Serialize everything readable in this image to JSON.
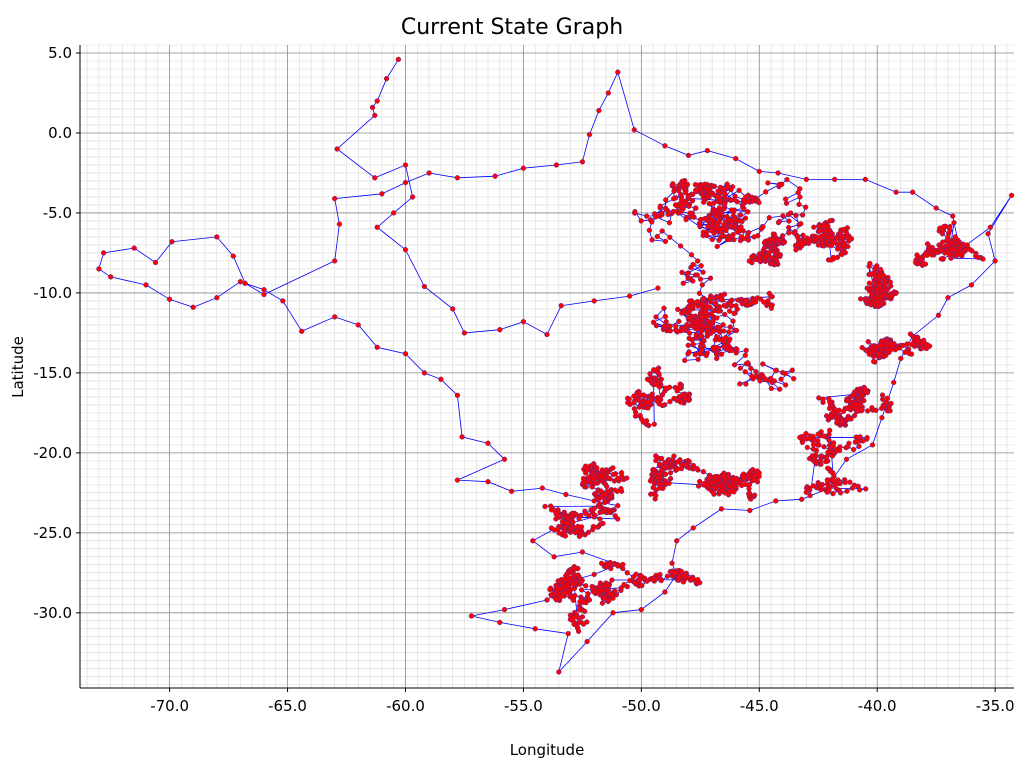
{
  "chart_data": {
    "type": "scatter",
    "title": "Current State Graph",
    "xlabel": "Longitude",
    "ylabel": "Latitude",
    "xlim": [
      -73.8,
      -34.2
    ],
    "ylim": [
      -34.7,
      5.5
    ],
    "x_ticks": [
      -70,
      -65,
      -60,
      -55,
      -50,
      -45,
      -40,
      -35
    ],
    "x_tick_labels": [
      "-70.0",
      "-65.0",
      "-60.0",
      "-55.0",
      "-50.0",
      "-45.0",
      "-40.0",
      "-35.0"
    ],
    "y_ticks": [
      5,
      0,
      -5,
      -10,
      -15,
      -20,
      -25,
      -30
    ],
    "y_tick_labels": [
      "5.0",
      "0.0",
      "-5.0",
      "-10.0",
      "-15.0",
      "-20.0",
      "-25.0",
      "-30.0"
    ],
    "grid": true,
    "colors": {
      "edges": "#0000ff",
      "nodes": "#ff0000",
      "node_edge": "#5b2a8c",
      "grid_major": "#8a8a8a",
      "grid_minor": "#d9d9d9"
    },
    "series": [
      {
        "role": "tour",
        "points": [
          [
            -36.5,
            -7.3
          ],
          [
            -35.2,
            -5.9
          ],
          [
            -34.3,
            -3.9
          ],
          [
            -35.3,
            -6.3
          ],
          [
            -35.0,
            -8.0
          ],
          [
            -36.0,
            -9.5
          ],
          [
            -37.0,
            -10.3
          ],
          [
            -37.4,
            -11.4
          ],
          [
            -38.5,
            -12.7
          ],
          [
            -39.0,
            -14.1
          ],
          [
            -39.3,
            -15.6
          ],
          [
            -39.8,
            -17.8
          ],
          [
            -40.2,
            -19.5
          ],
          [
            -41.3,
            -20.4
          ],
          [
            -42.2,
            -22.3
          ],
          [
            -43.2,
            -22.9
          ],
          [
            -44.3,
            -23.0
          ],
          [
            -45.4,
            -23.6
          ],
          [
            -46.6,
            -23.5
          ],
          [
            -47.8,
            -24.7
          ],
          [
            -48.5,
            -25.5
          ],
          [
            -48.7,
            -26.9
          ],
          [
            -48.5,
            -27.6
          ],
          [
            -49.0,
            -28.7
          ],
          [
            -50.0,
            -29.8
          ],
          [
            -51.2,
            -30.0
          ],
          [
            -52.3,
            -31.8
          ],
          [
            -53.5,
            -33.7
          ],
          [
            -53.1,
            -31.3
          ],
          [
            -54.5,
            -31.0
          ],
          [
            -56.0,
            -30.6
          ],
          [
            -57.2,
            -30.2
          ],
          [
            -55.8,
            -29.8
          ],
          [
            -54.0,
            -29.2
          ],
          [
            -53.0,
            -28.0
          ],
          [
            -52.0,
            -27.6
          ],
          [
            -51.0,
            -27.0
          ],
          [
            -52.5,
            -26.2
          ],
          [
            -53.7,
            -26.5
          ],
          [
            -54.6,
            -25.5
          ],
          [
            -53.5,
            -24.6
          ],
          [
            -52.0,
            -24.0
          ],
          [
            -51.0,
            -23.3
          ],
          [
            -52.0,
            -23.0
          ],
          [
            -53.2,
            -22.6
          ],
          [
            -54.2,
            -22.2
          ],
          [
            -55.5,
            -22.4
          ],
          [
            -56.5,
            -21.8
          ],
          [
            -57.8,
            -21.7
          ],
          [
            -55.8,
            -20.4
          ],
          [
            -56.5,
            -19.4
          ],
          [
            -57.6,
            -19.0
          ],
          [
            -57.8,
            -16.4
          ],
          [
            -58.5,
            -15.4
          ],
          [
            -59.2,
            -15.0
          ],
          [
            -60.0,
            -13.8
          ],
          [
            -61.2,
            -13.4
          ],
          [
            -62.0,
            -12.0
          ],
          [
            -63.0,
            -11.5
          ],
          [
            -64.4,
            -12.4
          ],
          [
            -65.2,
            -10.5
          ],
          [
            -66.0,
            -9.8
          ],
          [
            -67.0,
            -9.3
          ],
          [
            -68.0,
            -10.3
          ],
          [
            -69.0,
            -10.9
          ],
          [
            -70.0,
            -10.4
          ],
          [
            -71.0,
            -9.5
          ],
          [
            -72.5,
            -9.0
          ],
          [
            -73.0,
            -8.5
          ],
          [
            -72.8,
            -7.5
          ],
          [
            -71.5,
            -7.2
          ],
          [
            -70.6,
            -8.1
          ],
          [
            -69.9,
            -6.8
          ],
          [
            -68.0,
            -6.5
          ],
          [
            -67.3,
            -7.7
          ],
          [
            -66.8,
            -9.4
          ],
          [
            -66.0,
            -10.1
          ],
          [
            -63.0,
            -8.0
          ],
          [
            -62.8,
            -5.7
          ],
          [
            -63.0,
            -4.1
          ],
          [
            -61.0,
            -3.8
          ],
          [
            -60.0,
            -3.1
          ],
          [
            -59.0,
            -2.5
          ],
          [
            -57.8,
            -2.8
          ],
          [
            -56.2,
            -2.7
          ],
          [
            -55.0,
            -2.2
          ],
          [
            -53.6,
            -2.0
          ],
          [
            -52.5,
            -1.8
          ],
          [
            -52.2,
            -0.1
          ],
          [
            -51.8,
            1.4
          ],
          [
            -51.4,
            2.5
          ],
          [
            -51.0,
            3.8
          ],
          [
            -50.3,
            0.2
          ],
          [
            -49.0,
            -0.8
          ],
          [
            -48.0,
            -1.4
          ],
          [
            -47.2,
            -1.1
          ],
          [
            -46.0,
            -1.6
          ],
          [
            -45.0,
            -2.4
          ],
          [
            -44.2,
            -2.5
          ],
          [
            -43.0,
            -2.9
          ],
          [
            -41.8,
            -2.9
          ],
          [
            -40.5,
            -2.9
          ],
          [
            -39.2,
            -3.7
          ],
          [
            -38.5,
            -3.7
          ],
          [
            -37.5,
            -4.7
          ],
          [
            -36.8,
            -5.2
          ],
          [
            -36.5,
            -7.3
          ]
        ],
        "north_branch": [
          [
            -60.3,
            4.6
          ],
          [
            -60.8,
            3.4
          ],
          [
            -61.2,
            2.0
          ],
          [
            -61.4,
            1.6
          ],
          [
            -61.3,
            1.1
          ],
          [
            -62.9,
            -1.0
          ],
          [
            -61.3,
            -2.8
          ],
          [
            -60.0,
            -2.0
          ],
          [
            -59.7,
            -4.0
          ],
          [
            -60.5,
            -5.0
          ],
          [
            -61.2,
            -5.9
          ],
          [
            -60.0,
            -7.3
          ],
          [
            -59.2,
            -9.6
          ],
          [
            -58.0,
            -11.0
          ],
          [
            -57.5,
            -12.5
          ],
          [
            -56.0,
            -12.3
          ],
          [
            -55.0,
            -11.8
          ],
          [
            -54.0,
            -12.6
          ],
          [
            -53.4,
            -10.8
          ],
          [
            -52.0,
            -10.5
          ],
          [
            -50.5,
            -10.2
          ],
          [
            -49.3,
            -9.7
          ]
        ],
        "interior_cluster_centers": [
          [
            -37.0,
            -7.0
          ],
          [
            -38.8,
            -12.6
          ],
          [
            -42.9,
            -20.6
          ],
          [
            -46.0,
            -22.0
          ],
          [
            -48.5,
            -21.5
          ],
          [
            -51.0,
            -22.0
          ],
          [
            -52.5,
            -25.0
          ],
          [
            -53.0,
            -28.8
          ],
          [
            -50.0,
            -28.0
          ],
          [
            -49.5,
            -16.5
          ],
          [
            -46.5,
            -11.0
          ],
          [
            -42.0,
            -5.5
          ],
          [
            -39.5,
            -9.5
          ],
          [
            -44.5,
            -7.5
          ],
          [
            -47.5,
            -4.5
          ],
          [
            -41.0,
            -16.0
          ]
        ]
      }
    ]
  }
}
